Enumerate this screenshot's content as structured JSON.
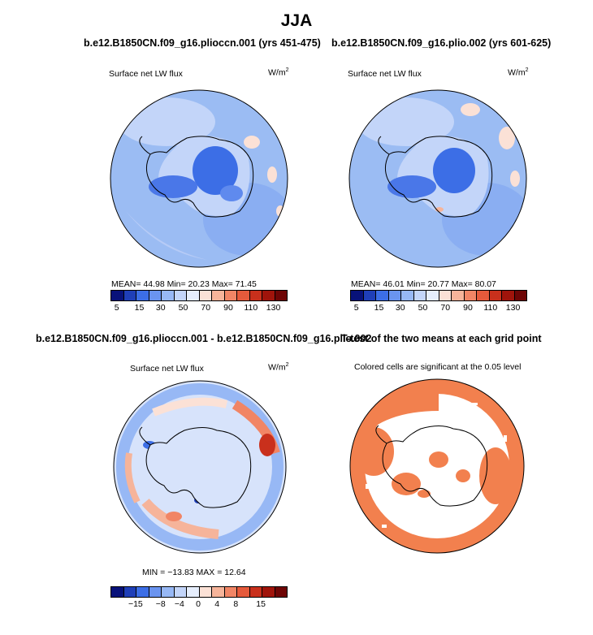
{
  "title": "JJA",
  "panels": [
    {
      "title": "b.e12.B1850CN.f09_g16.plioccn.001 (yrs 451-475)",
      "variable": "Surface net LW flux",
      "units": "W/m",
      "units_sup": "2",
      "stats": "MEAN=   44.98   Min=   20.23   Max=   71.45"
    },
    {
      "title": "b.e12.B1850CN.f09_g16.plio.002 (yrs 601-625)",
      "variable": "Surface net LW flux",
      "units": "W/m",
      "units_sup": "2",
      "stats": "MEAN=   46.01   Min=   20.77   Max=   80.07"
    },
    {
      "title": "b.e12.B1850CN.f09_g16.plioccn.001 - b.e12.B1850CN.f09_g16.plio.002",
      "variable": "Surface net LW flux",
      "units": "W/m",
      "units_sup": "2",
      "stats": "MIN = −13.83  MAX =   12.64"
    },
    {
      "title": "T-test of the two means at each grid point",
      "variable": "Colored cells are significant at the 0.05 level"
    }
  ],
  "colorbar_abs": {
    "ticks": [
      "5",
      "15",
      "30",
      "50",
      "70",
      "90",
      "110",
      "130"
    ],
    "colors": [
      "#08127a",
      "#1f3fb8",
      "#3c6ee6",
      "#6a94f0",
      "#97b8f5",
      "#c3d5f9",
      "#e6eefc",
      "#fbe1d6",
      "#f6b49a",
      "#f18565",
      "#e55a3b",
      "#c9301c",
      "#a0140b",
      "#6e0505"
    ]
  },
  "colorbar_diff": {
    "ticks": [
      "−15",
      "−8",
      "−4",
      "0",
      "4",
      "8",
      "15"
    ],
    "colors": [
      "#08127a",
      "#1f3fb8",
      "#3c6ee6",
      "#6a94f0",
      "#97b8f5",
      "#c3d5f9",
      "#e6eefc",
      "#fbe1d6",
      "#f6b49a",
      "#f18565",
      "#e55a3b",
      "#c9301c",
      "#a0140b",
      "#6e0505"
    ]
  },
  "significance_color": "#f2804e",
  "background_colors": {
    "abs_ocean": "#8fb1f2",
    "diff_ocean": "#d7e3fb"
  },
  "icons": [
    "antarctica-coastline"
  ]
}
